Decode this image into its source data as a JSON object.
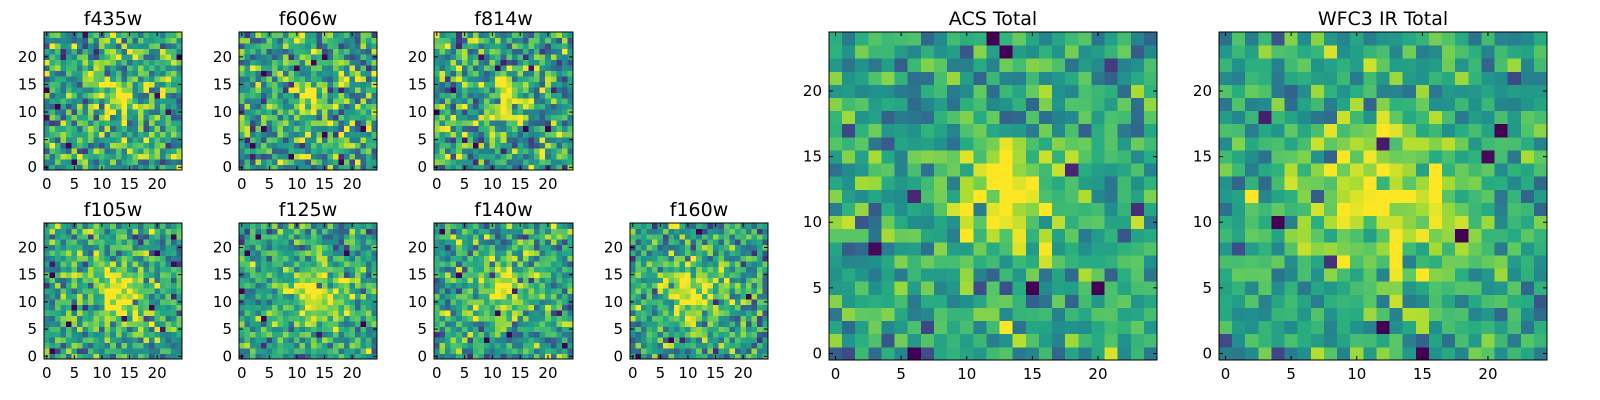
{
  "chart_data": [
    {
      "type": "heatmap",
      "title": "f435w",
      "colormap": "viridis",
      "grid": false,
      "xlim": [
        -0.5,
        24.5
      ],
      "ylim": [
        -0.5,
        24.5
      ],
      "xticks": [
        0,
        5,
        10,
        15,
        20
      ],
      "yticks": [
        0,
        5,
        10,
        15,
        20
      ],
      "source_peak": [
        13,
        13
      ],
      "source_width": 3.0,
      "source_amplitude": 0.35,
      "noise": 0.42,
      "seed": 11
    },
    {
      "type": "heatmap",
      "title": "f606w",
      "colormap": "viridis",
      "grid": false,
      "xlim": [
        -0.5,
        24.5
      ],
      "ylim": [
        -0.5,
        24.5
      ],
      "xticks": [
        0,
        5,
        10,
        15,
        20
      ],
      "yticks": [
        0,
        5,
        10,
        15,
        20
      ],
      "source_peak": [
        13,
        12
      ],
      "source_width": 2.2,
      "source_amplitude": 0.45,
      "noise": 0.42,
      "seed": 23
    },
    {
      "type": "heatmap",
      "title": "f814w",
      "colormap": "viridis",
      "grid": false,
      "xlim": [
        -0.5,
        24.5
      ],
      "ylim": [
        -0.5,
        24.5
      ],
      "xticks": [
        0,
        5,
        10,
        15,
        20
      ],
      "yticks": [
        0,
        5,
        10,
        15,
        20
      ],
      "source_peak": [
        13,
        12
      ],
      "source_width": 2.5,
      "source_amplitude": 0.45,
      "noise": 0.42,
      "seed": 37
    },
    {
      "type": "heatmap",
      "title": "f105w",
      "colormap": "viridis",
      "grid": false,
      "xlim": [
        -0.5,
        24.5
      ],
      "ylim": [
        -0.5,
        24.5
      ],
      "xticks": [
        0,
        5,
        10,
        15,
        20
      ],
      "yticks": [
        0,
        5,
        10,
        15,
        20
      ],
      "source_peak": [
        13,
        11
      ],
      "source_width": 3.5,
      "source_amplitude": 0.45,
      "noise": 0.35,
      "seed": 41
    },
    {
      "type": "heatmap",
      "title": "f125w",
      "colormap": "viridis",
      "grid": false,
      "xlim": [
        -0.5,
        24.5
      ],
      "ylim": [
        -0.5,
        24.5
      ],
      "xticks": [
        0,
        5,
        10,
        15,
        20
      ],
      "yticks": [
        0,
        5,
        10,
        15,
        20
      ],
      "source_peak": [
        13,
        11
      ],
      "source_width": 4.0,
      "source_amplitude": 0.35,
      "noise": 0.33,
      "seed": 53
    },
    {
      "type": "heatmap",
      "title": "f140w",
      "colormap": "viridis",
      "grid": false,
      "xlim": [
        -0.5,
        24.5
      ],
      "ylim": [
        -0.5,
        24.5
      ],
      "xticks": [
        0,
        5,
        10,
        15,
        20
      ],
      "yticks": [
        0,
        5,
        10,
        15,
        20
      ],
      "source_peak": [
        12,
        12
      ],
      "source_width": 4.0,
      "source_amplitude": 0.35,
      "noise": 0.36,
      "seed": 67
    },
    {
      "type": "heatmap",
      "title": "f160w",
      "colormap": "viridis",
      "grid": false,
      "xlim": [
        -0.5,
        24.5
      ],
      "ylim": [
        -0.5,
        24.5
      ],
      "xticks": [
        0,
        5,
        10,
        15,
        20
      ],
      "yticks": [
        0,
        5,
        10,
        15,
        20
      ],
      "source_peak": [
        11,
        12
      ],
      "source_width": 3.5,
      "source_amplitude": 0.4,
      "noise": 0.36,
      "seed": 79
    },
    {
      "type": "heatmap",
      "title": "ACS Total",
      "colormap": "viridis",
      "grid": false,
      "xlim": [
        -0.5,
        24.5
      ],
      "ylim": [
        -0.5,
        24.5
      ],
      "xticks": [
        0,
        5,
        10,
        15,
        20
      ],
      "yticks": [
        0,
        5,
        10,
        15,
        20
      ],
      "source_peak": [
        13,
        12
      ],
      "source_width": 2.6,
      "source_amplitude": 0.5,
      "noise": 0.3,
      "seed": 97
    },
    {
      "type": "heatmap",
      "title": "WFC3 IR Total",
      "colormap": "viridis",
      "grid": false,
      "xlim": [
        -0.5,
        24.5
      ],
      "ylim": [
        -0.5,
        24.5
      ],
      "xticks": [
        0,
        5,
        10,
        15,
        20
      ],
      "yticks": [
        0,
        5,
        10,
        15,
        20
      ],
      "source_peak": [
        12,
        12
      ],
      "source_width": 4.5,
      "source_amplitude": 0.4,
      "noise": 0.28,
      "seed": 113
    }
  ]
}
